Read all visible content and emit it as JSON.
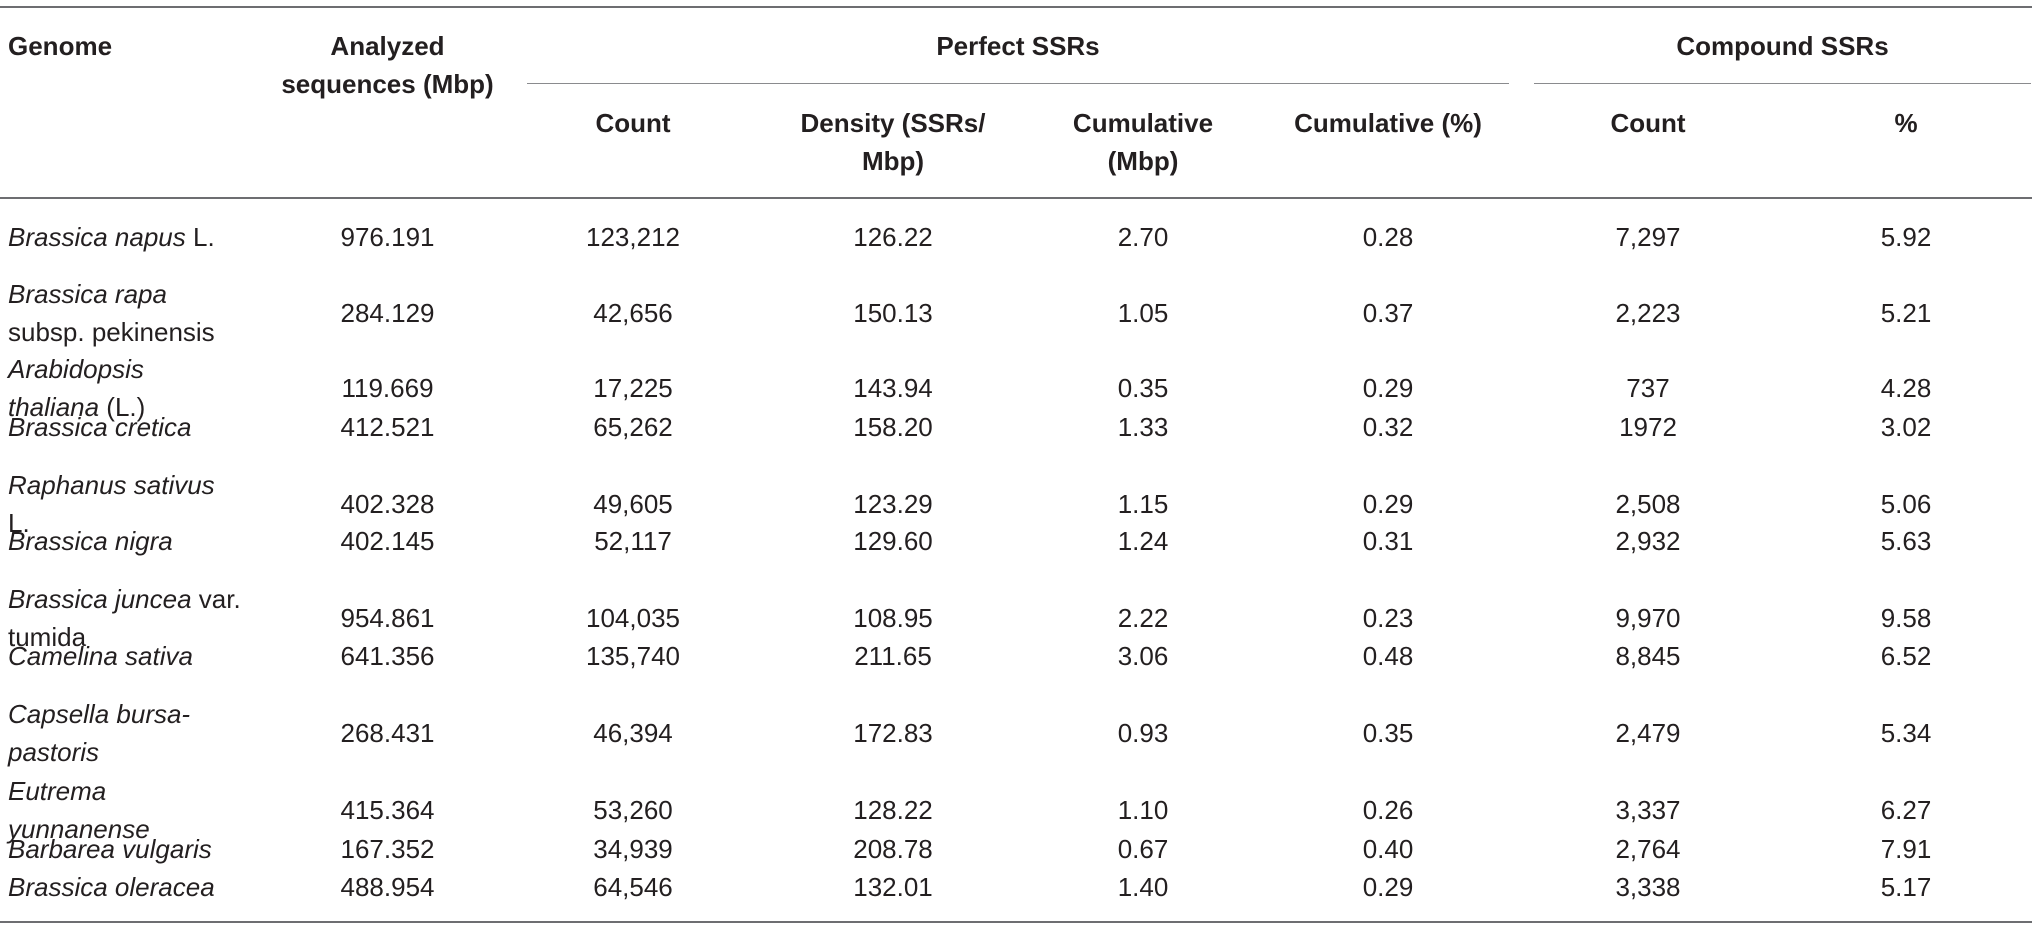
{
  "headers": {
    "genome": "Genome",
    "analyzed_line1": "Analyzed",
    "analyzed_line2": "sequences (Mbp)",
    "perfect_group": "Perfect SSRs",
    "compound_group": "Compound SSRs",
    "count": "Count",
    "density_line1": "Density (SSRs/",
    "density_line2": "Mbp)",
    "cumulative_line1": "Cumulative",
    "cumulative_line2": "(Mbp)",
    "cumulative_pct": "Cumulative (%)",
    "compound_count": "Count",
    "compound_pct": "%"
  },
  "rows": [
    {
      "g1": "Brassica napus",
      "g1s": " L.",
      "g2": "",
      "g2s": "",
      "analyzed": "976.191",
      "count": "123,212",
      "density": "126.22",
      "cum": "2.70",
      "cum_pct": "0.28",
      "c_count": "7,297",
      "c_pct": "5.92"
    },
    {
      "g1": "Brassica rapa",
      "g1s": "",
      "g2": "",
      "g2s": "subsp. pekinensis",
      "analyzed": "284.129",
      "count": "42,656",
      "density": "150.13",
      "cum": "1.05",
      "cum_pct": "0.37",
      "c_count": "2,223",
      "c_pct": "5.21"
    },
    {
      "g1": "Arabidopsis",
      "g1s": "",
      "g2": "thaliana",
      "g2s": " (L.)",
      "analyzed": "119.669",
      "count": "17,225",
      "density": "143.94",
      "cum": "0.35",
      "cum_pct": "0.29",
      "c_count": "737",
      "c_pct": "4.28"
    },
    {
      "g1": "Brassica cretica",
      "g1s": "",
      "g2": "",
      "g2s": "",
      "analyzed": "412.521",
      "count": "65,262",
      "density": "158.20",
      "cum": "1.33",
      "cum_pct": "0.32",
      "c_count": "1972",
      "c_pct": "3.02"
    },
    {
      "g1": "Raphanus sativus",
      "g1s": "",
      "g2": "",
      "g2s": "L.",
      "analyzed": "402.328",
      "count": "49,605",
      "density": "123.29",
      "cum": "1.15",
      "cum_pct": "0.29",
      "c_count": "2,508",
      "c_pct": "5.06"
    },
    {
      "g1": "Brassica nigra",
      "g1s": "",
      "g2": "",
      "g2s": "",
      "analyzed": "402.145",
      "count": "52,117",
      "density": "129.60",
      "cum": "1.24",
      "cum_pct": "0.31",
      "c_count": "2,932",
      "c_pct": "5.63"
    },
    {
      "g1": "Brassica juncea",
      "g1s": " var.",
      "g2": "",
      "g2s": "tumida",
      "analyzed": "954.861",
      "count": "104,035",
      "density": "108.95",
      "cum": "2.22",
      "cum_pct": "0.23",
      "c_count": "9,970",
      "c_pct": "9.58"
    },
    {
      "g1": "Camelina sativa",
      "g1s": "",
      "g2": "",
      "g2s": "",
      "analyzed": "641.356",
      "count": "135,740",
      "density": "211.65",
      "cum": "3.06",
      "cum_pct": "0.48",
      "c_count": "8,845",
      "c_pct": "6.52"
    },
    {
      "g1": "Capsella bursa-",
      "g1s": "",
      "g2": "pastoris",
      "g2s": "",
      "analyzed": "268.431",
      "count": "46,394",
      "density": "172.83",
      "cum": "0.93",
      "cum_pct": "0.35",
      "c_count": "2,479",
      "c_pct": "5.34"
    },
    {
      "g1": "Eutrema",
      "g1s": "",
      "g2": "yunnanense",
      "g2s": "",
      "analyzed": "415.364",
      "count": "53,260",
      "density": "128.22",
      "cum": "1.10",
      "cum_pct": "0.26",
      "c_count": "3,337",
      "c_pct": "6.27"
    },
    {
      "g1": "Barbarea vulgaris",
      "g1s": "",
      "g2": "",
      "g2s": "",
      "analyzed": "167.352",
      "count": "34,939",
      "density": "208.78",
      "cum": "0.67",
      "cum_pct": "0.40",
      "c_count": "2,764",
      "c_pct": "7.91"
    },
    {
      "g1": "Brassica oleracea",
      "g1s": "",
      "g2": "",
      "g2s": "",
      "analyzed": "488.954",
      "count": "64,546",
      "density": "132.01",
      "cum": "1.40",
      "cum_pct": "0.29",
      "c_count": "3,338",
      "c_pct": "5.17"
    }
  ]
}
